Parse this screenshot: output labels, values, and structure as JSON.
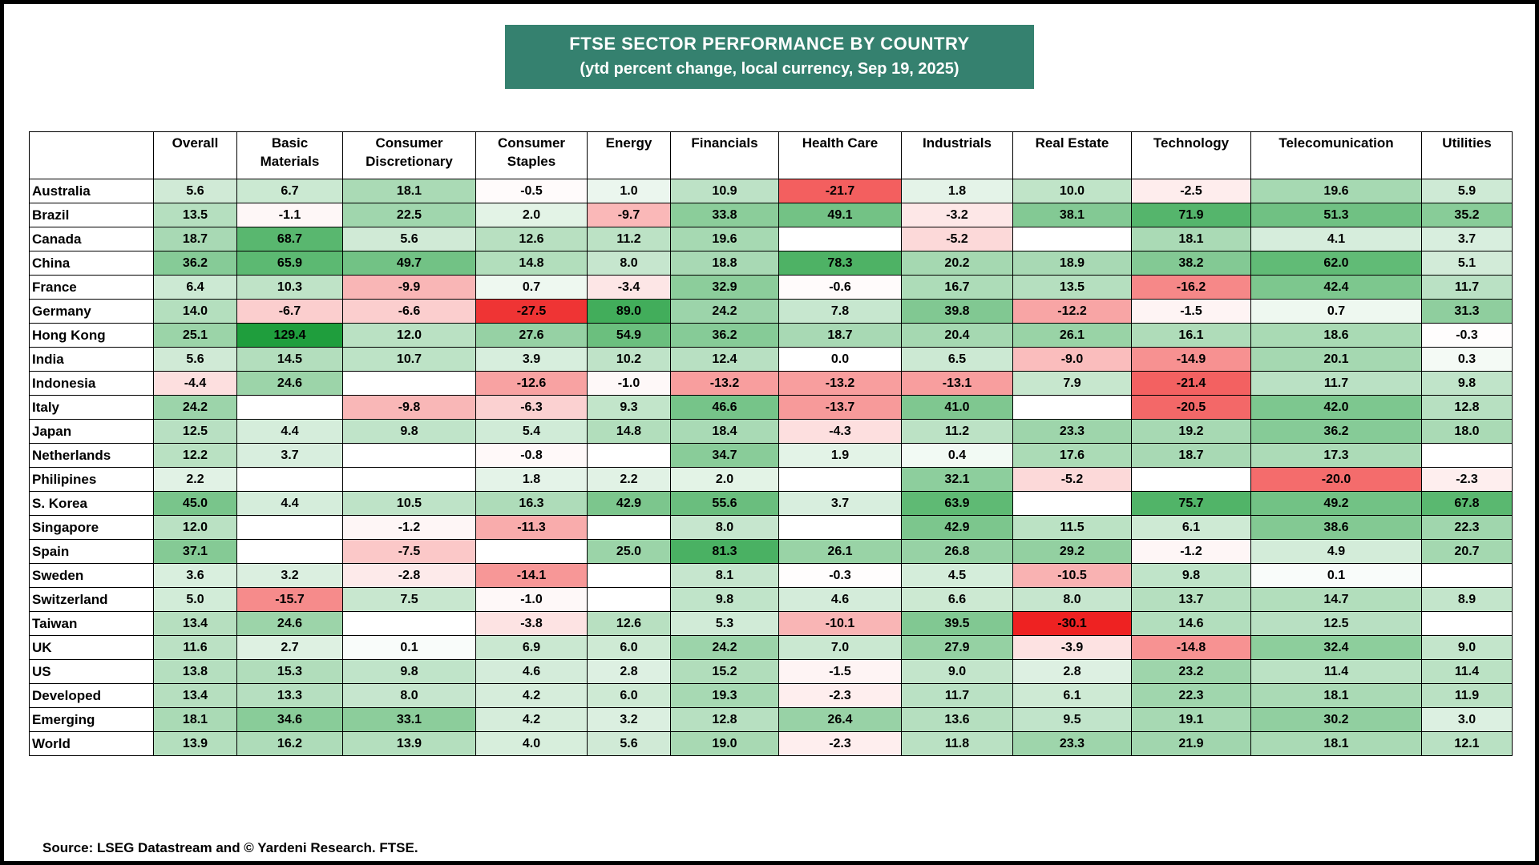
{
  "title": {
    "line1": "FTSE SECTOR PERFORMANCE BY COUNTRY",
    "line2": "(ytd percent change, local currency, Sep 19, 2025)"
  },
  "source": "Source: LSEG Datastream and © Yardeni Research. FTSE.",
  "colors": {
    "header_bg": "#35816F",
    "positive": "#1f9e3d",
    "negative": "#ee2222",
    "neutral": "#ffffff"
  },
  "chart_data": {
    "type": "heatmap",
    "title": "FTSE SECTOR PERFORMANCE BY COUNTRY",
    "subtitle": "(ytd percent change, local currency, Sep 19, 2025)",
    "columns": [
      "Overall",
      "Basic\nMaterials",
      "Consumer\nDiscretionary",
      "Consumer\nStaples",
      "Energy",
      "Financials",
      "Health Care",
      "Industrials",
      "Real Estate",
      "Technology",
      "Telecomunication",
      "Utilities"
    ],
    "rows": [
      {
        "label": "Australia",
        "values": [
          5.6,
          6.7,
          18.1,
          -0.5,
          1.0,
          10.9,
          -21.7,
          1.8,
          10.0,
          -2.5,
          19.6,
          5.9
        ]
      },
      {
        "label": "Brazil",
        "values": [
          13.5,
          -1.1,
          22.5,
          2.0,
          -9.7,
          33.8,
          49.1,
          -3.2,
          38.1,
          71.9,
          51.3,
          35.2
        ]
      },
      {
        "label": "Canada",
        "values": [
          18.7,
          68.7,
          5.6,
          12.6,
          11.2,
          19.6,
          null,
          -5.2,
          null,
          18.1,
          4.1,
          3.7
        ]
      },
      {
        "label": "China",
        "values": [
          36.2,
          65.9,
          49.7,
          14.8,
          8.0,
          18.8,
          78.3,
          20.2,
          18.9,
          38.2,
          62.0,
          5.1
        ]
      },
      {
        "label": "France",
        "values": [
          6.4,
          10.3,
          -9.9,
          0.7,
          -3.4,
          32.9,
          -0.6,
          16.7,
          13.5,
          -16.2,
          42.4,
          11.7
        ]
      },
      {
        "label": "Germany",
        "values": [
          14.0,
          -6.7,
          -6.6,
          -27.5,
          89.0,
          24.2,
          7.8,
          39.8,
          -12.2,
          -1.5,
          0.7,
          31.3
        ]
      },
      {
        "label": "Hong Kong",
        "values": [
          25.1,
          129.4,
          12.0,
          27.6,
          54.9,
          36.2,
          18.7,
          20.4,
          26.1,
          16.1,
          18.6,
          -0.3
        ]
      },
      {
        "label": "India",
        "values": [
          5.6,
          14.5,
          10.7,
          3.9,
          10.2,
          12.4,
          0.0,
          6.5,
          -9.0,
          -14.9,
          20.1,
          0.3
        ]
      },
      {
        "label": "Indonesia",
        "values": [
          -4.4,
          24.6,
          null,
          -12.6,
          -1.0,
          -13.2,
          -13.2,
          -13.1,
          7.9,
          -21.4,
          11.7,
          9.8
        ]
      },
      {
        "label": "Italy",
        "values": [
          24.2,
          null,
          -9.8,
          -6.3,
          9.3,
          46.6,
          -13.7,
          41.0,
          null,
          -20.5,
          42.0,
          12.8
        ]
      },
      {
        "label": "Japan",
        "values": [
          12.5,
          4.4,
          9.8,
          5.4,
          14.8,
          18.4,
          -4.3,
          11.2,
          23.3,
          19.2,
          36.2,
          18.0
        ]
      },
      {
        "label": "Netherlands",
        "values": [
          12.2,
          3.7,
          null,
          -0.8,
          null,
          34.7,
          1.9,
          0.4,
          17.6,
          18.7,
          17.3,
          null
        ]
      },
      {
        "label": "Philipines",
        "values": [
          2.2,
          null,
          null,
          1.8,
          2.2,
          2.0,
          null,
          32.1,
          -5.2,
          null,
          -20.0,
          -2.3
        ]
      },
      {
        "label": "S. Korea",
        "values": [
          45.0,
          4.4,
          10.5,
          16.3,
          42.9,
          55.6,
          3.7,
          63.9,
          null,
          75.7,
          49.2,
          67.8
        ]
      },
      {
        "label": "Singapore",
        "values": [
          12.0,
          null,
          -1.2,
          -11.3,
          null,
          8.0,
          null,
          42.9,
          11.5,
          6.1,
          38.6,
          22.3
        ]
      },
      {
        "label": "Spain",
        "values": [
          37.1,
          null,
          -7.5,
          null,
          25.0,
          81.3,
          26.1,
          26.8,
          29.2,
          -1.2,
          4.9,
          20.7
        ]
      },
      {
        "label": "Sweden",
        "values": [
          3.6,
          3.2,
          -2.8,
          -14.1,
          null,
          8.1,
          -0.3,
          4.5,
          -10.5,
          9.8,
          0.1,
          null
        ]
      },
      {
        "label": "Switzerland",
        "values": [
          5.0,
          -15.7,
          7.5,
          -1.0,
          null,
          9.8,
          4.6,
          6.6,
          8.0,
          13.7,
          14.7,
          8.9
        ]
      },
      {
        "label": "Taiwan",
        "values": [
          13.4,
          24.6,
          null,
          -3.8,
          12.6,
          5.3,
          -10.1,
          39.5,
          -30.1,
          14.6,
          12.5,
          null
        ]
      },
      {
        "label": "UK",
        "values": [
          11.6,
          2.7,
          0.1,
          6.9,
          6.0,
          24.2,
          7.0,
          27.9,
          -3.9,
          -14.8,
          32.4,
          9.0
        ]
      },
      {
        "label": "US",
        "values": [
          13.8,
          15.3,
          9.8,
          4.6,
          2.8,
          15.2,
          -1.5,
          9.0,
          2.8,
          23.2,
          11.4,
          11.4
        ]
      },
      {
        "label": "Developed",
        "values": [
          13.4,
          13.3,
          8.0,
          4.2,
          6.0,
          19.3,
          -2.3,
          11.7,
          6.1,
          22.3,
          18.1,
          11.9
        ]
      },
      {
        "label": "Emerging",
        "values": [
          18.1,
          34.6,
          33.1,
          4.2,
          3.2,
          12.8,
          26.4,
          13.6,
          9.5,
          19.1,
          30.2,
          3.0
        ]
      },
      {
        "label": "World",
        "values": [
          13.9,
          16.2,
          13.9,
          4.0,
          5.6,
          19.0,
          -2.3,
          11.8,
          23.3,
          21.9,
          18.1,
          12.1
        ]
      }
    ],
    "value_format": "one_decimal",
    "color_scale": {
      "positive_color": "#1f9e3d",
      "positive_saturation_value": 125,
      "negative_color": "#ee2222",
      "negative_saturation_value": -30,
      "empty_color": "#ffffff"
    },
    "legend_position": "none",
    "grid": true
  }
}
